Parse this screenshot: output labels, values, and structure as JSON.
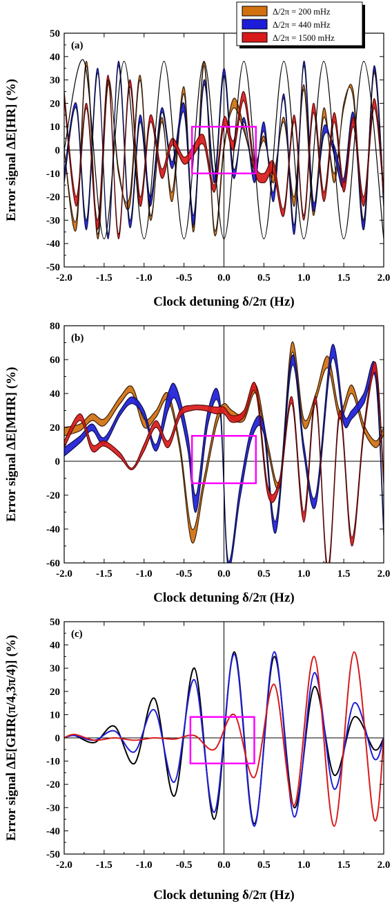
{
  "legend": [
    {
      "label": "Δ/2π = 200 mHz",
      "color": "#d0700f"
    },
    {
      "label": "Δ/2π = 440 mHz",
      "color": "#1d1dd8"
    },
    {
      "label": "Δ/2π = 1500 mHz",
      "color": "#d81a1a"
    }
  ],
  "colors": {
    "black": "#000000",
    "frame": "#000000",
    "highlight_box": "#ff00ff",
    "brown_dark": "#3a1f08",
    "navy_dark": "#0b0f4a",
    "red_dark": "#5a0a0a"
  },
  "chart_data": [
    {
      "panel": "(a)",
      "type": "line",
      "style": "bands",
      "xlabel": "Clock detuning δ/2π  (Hz)",
      "ylabel": "Error signal ΔE[HR] (%)",
      "xlim": [
        -2.0,
        2.0
      ],
      "ylim": [
        -50,
        50
      ],
      "xticks": [
        "-2.0",
        "-1.5",
        "-1.0",
        "-0.5",
        "0.0",
        "0.5",
        "1.0",
        "1.5",
        "2.0"
      ],
      "yticks": [
        "-50",
        "-40",
        "-30",
        "-20",
        "-10",
        "0",
        "10",
        "20",
        "30",
        "40",
        "50"
      ],
      "highlight_box": {
        "x": [
          -0.4,
          0.4
        ],
        "y": [
          -10,
          10
        ]
      },
      "series": [
        {
          "color": "#d0700f",
          "outline": "#3a1f08",
          "x": [
            -2.0,
            -1.85,
            -1.72,
            -1.58,
            -1.45,
            -1.32,
            -1.18,
            -1.05,
            -0.92,
            -0.78,
            -0.65,
            -0.5,
            -0.38,
            -0.25,
            -0.12,
            0.0,
            0.12,
            0.25,
            0.38,
            0.5,
            0.62,
            0.75,
            0.88,
            1.0,
            1.12,
            1.25,
            1.38,
            1.5,
            1.62,
            1.75,
            1.88,
            2.0
          ],
          "y": [
            0,
            -30,
            38,
            -36,
            30,
            -10,
            -20,
            32,
            -28,
            12,
            -18,
            27,
            -33,
            38,
            -34,
            2,
            18,
            8,
            -6,
            4,
            -10,
            12,
            -20,
            28,
            -24,
            14,
            -10,
            18,
            25,
            -30,
            35,
            -20
          ],
          "y_other": [
            0,
            -34,
            36,
            -38,
            28,
            -8,
            -24,
            30,
            -30,
            14,
            -22,
            24,
            -35,
            36,
            -36,
            0,
            22,
            10,
            -8,
            6,
            -14,
            14,
            -24,
            26,
            -28,
            18,
            -14,
            20,
            22,
            -34,
            33,
            -24
          ]
        },
        {
          "color": "#1d1dd8",
          "outline": "#0b0f4a",
          "x": [
            -2.0,
            -1.85,
            -1.72,
            -1.58,
            -1.45,
            -1.32,
            -1.18,
            -1.05,
            -0.92,
            -0.78,
            -0.65,
            -0.5,
            -0.38,
            -0.25,
            -0.12,
            0.0,
            0.12,
            0.25,
            0.38,
            0.5,
            0.62,
            0.75,
            0.88,
            1.0,
            1.12,
            1.25,
            1.38,
            1.5,
            1.62,
            1.75,
            1.88,
            2.0
          ],
          "y": [
            -10,
            20,
            -30,
            35,
            -38,
            38,
            -30,
            15,
            -20,
            18,
            -5,
            20,
            -28,
            30,
            -10,
            35,
            -8,
            12,
            -10,
            8,
            -18,
            22,
            -36,
            38,
            -22,
            6,
            2,
            -12,
            16,
            -34,
            36,
            -20
          ],
          "y_other": [
            -14,
            18,
            -34,
            33,
            -36,
            36,
            -33,
            12,
            -24,
            16,
            -8,
            16,
            -32,
            28,
            -14,
            32,
            -12,
            14,
            -14,
            12,
            -22,
            24,
            -32,
            36,
            -26,
            10,
            -2,
            -16,
            12,
            -30,
            34,
            -24
          ]
        },
        {
          "color": "#d81a1a",
          "outline": "#5a0a0a",
          "x": [
            -2.0,
            -1.85,
            -1.72,
            -1.58,
            -1.45,
            -1.32,
            -1.18,
            -1.05,
            -0.92,
            -0.78,
            -0.65,
            -0.5,
            -0.38,
            -0.25,
            -0.12,
            0.0,
            0.12,
            0.25,
            0.38,
            0.5,
            0.62,
            0.75,
            0.88,
            1.0,
            1.12,
            1.25,
            1.38,
            1.5,
            1.62,
            1.75,
            1.88,
            2.0
          ],
          "y": [
            25,
            -20,
            20,
            -30,
            32,
            -36,
            30,
            -20,
            15,
            -8,
            5,
            -3,
            2,
            6,
            -15,
            14,
            4,
            25,
            -5,
            -10,
            -5,
            -25,
            15,
            -28,
            20,
            -18,
            16,
            -14,
            14,
            -20,
            22,
            -16
          ],
          "y_other": [
            22,
            -24,
            18,
            -34,
            30,
            -38,
            27,
            -24,
            12,
            -12,
            2,
            -6,
            -2,
            2,
            -18,
            10,
            0,
            21,
            -9,
            -14,
            -10,
            -28,
            12,
            -30,
            16,
            -22,
            12,
            -18,
            10,
            -24,
            18,
            -20
          ]
        },
        {
          "color": "#000000",
          "outline": "#000000",
          "x": [
            -2.0,
            -1.75,
            -1.5,
            -1.25,
            -1.0,
            -0.75,
            -0.5,
            -0.25,
            0.0,
            0.25,
            0.5,
            0.75,
            1.0,
            1.25,
            1.5,
            1.75,
            2.0
          ],
          "y": [
            0,
            38,
            -38,
            38,
            -38,
            38,
            -38,
            38,
            -38,
            38,
            -38,
            38,
            -38,
            38,
            -38,
            38,
            -38
          ],
          "y_other": null
        }
      ]
    },
    {
      "panel": "(b)",
      "type": "line",
      "style": "bands",
      "xlabel": "Clock detuning δ/2π  (Hz)",
      "ylabel": "Error signal ΔE[MHR] (%)",
      "xlim": [
        -2.0,
        2.0
      ],
      "ylim": [
        -60,
        80
      ],
      "xticks": [
        "-2.0",
        "-1.5",
        "-1.0",
        "-0.5",
        "0.0",
        "0.5",
        "1.0",
        "1.5",
        "2.0"
      ],
      "yticks": [
        "-60",
        "-40",
        "-20",
        "0",
        "20",
        "40",
        "60",
        "80"
      ],
      "highlight_box": {
        "x": [
          -0.4,
          0.4
        ],
        "y": [
          -13,
          15
        ]
      },
      "series": [
        {
          "color": "#d0700f",
          "outline": "#3a1f08",
          "x": [
            -2.0,
            -1.8,
            -1.65,
            -1.5,
            -1.3,
            -1.15,
            -1.0,
            -0.85,
            -0.7,
            -0.55,
            -0.4,
            -0.25,
            -0.1,
            0.0,
            0.1,
            0.25,
            0.4,
            0.55,
            0.7,
            0.85,
            1.0,
            1.15,
            1.3,
            1.45,
            1.6,
            1.75,
            1.9,
            2.0
          ],
          "y": [
            20,
            22,
            28,
            25,
            38,
            44,
            25,
            30,
            40,
            10,
            -40,
            -10,
            25,
            34,
            30,
            28,
            45,
            10,
            -10,
            70,
            25,
            40,
            62,
            30,
            45,
            22,
            12,
            20
          ],
          "y_other": [
            15,
            18,
            24,
            21,
            34,
            40,
            20,
            26,
            36,
            6,
            -48,
            -15,
            20,
            30,
            25,
            24,
            40,
            6,
            -14,
            64,
            20,
            36,
            55,
            25,
            40,
            18,
            8,
            16
          ]
        },
        {
          "color": "#1d1dd8",
          "outline": "#0b0f4a",
          "x": [
            -2.0,
            -1.8,
            -1.65,
            -1.5,
            -1.3,
            -1.15,
            -1.0,
            -0.85,
            -0.7,
            -0.6,
            -0.45,
            -0.35,
            -0.2,
            -0.05,
            0.05,
            0.2,
            0.35,
            0.5,
            0.65,
            0.85,
            1.0,
            1.15,
            1.35,
            1.5,
            1.6,
            1.75,
            1.9,
            2.0
          ],
          "y": [
            8,
            15,
            22,
            14,
            30,
            38,
            30,
            10,
            40,
            44,
            15,
            -20,
            30,
            36,
            -58,
            -15,
            20,
            22,
            -35,
            62,
            10,
            -20,
            68,
            28,
            30,
            40,
            55,
            -40
          ],
          "y_other": [
            3,
            11,
            18,
            10,
            27,
            34,
            26,
            6,
            30,
            36,
            6,
            -30,
            22,
            30,
            -62,
            -22,
            14,
            16,
            -42,
            56,
            4,
            -26,
            60,
            22,
            25,
            34,
            48,
            -44
          ]
        },
        {
          "color": "#d81a1a",
          "outline": "#5a0a0a",
          "x": [
            -2.0,
            -1.8,
            -1.65,
            -1.5,
            -1.3,
            -1.15,
            -1.0,
            -0.85,
            -0.7,
            -0.55,
            -0.4,
            -0.25,
            -0.1,
            0.0,
            0.1,
            0.25,
            0.4,
            0.55,
            0.7,
            0.85,
            1.0,
            1.15,
            1.3,
            1.45,
            1.6,
            1.75,
            1.9,
            2.0
          ],
          "y": [
            12,
            28,
            10,
            12,
            5,
            -4,
            10,
            24,
            12,
            30,
            33,
            33,
            32,
            32,
            27,
            30,
            45,
            -15,
            -10,
            38,
            -30,
            38,
            -62,
            30,
            -45,
            20,
            58,
            -10
          ],
          "y_other": [
            8,
            24,
            6,
            9,
            2,
            -5,
            6,
            20,
            8,
            26,
            30,
            30,
            28,
            28,
            23,
            26,
            40,
            -20,
            -14,
            34,
            -36,
            34,
            -66,
            26,
            -50,
            16,
            52,
            -14
          ]
        }
      ]
    },
    {
      "panel": "(c)",
      "type": "line",
      "style": "lines",
      "xlabel": "Clock detuning δ/2π  (Hz)",
      "ylabel": "Error signal ΔE[GHR(π/4,3π/4)] (%)",
      "xlim": [
        -2.0,
        2.0
      ],
      "ylim": [
        -50,
        50
      ],
      "xticks": [
        "-2.0",
        "-1.5",
        "-1.0",
        "-0.5",
        "0.0",
        "0.5",
        "1.0",
        "1.5",
        "2.0"
      ],
      "yticks": [
        "-50",
        "-40",
        "-30",
        "-20",
        "-10",
        "0",
        "10",
        "20",
        "30",
        "40",
        "50"
      ],
      "highlight_box": {
        "x": [
          -0.42,
          0.38
        ],
        "y": [
          -11,
          9
        ]
      },
      "series": [
        {
          "color": "#000000",
          "x": [
            -2.0,
            -1.87,
            -1.62,
            -1.37,
            -1.12,
            -0.87,
            -0.62,
            -0.37,
            -0.12,
            0.13,
            0.38,
            0.63,
            0.88,
            1.13,
            1.38,
            1.63,
            1.88,
            2.0
          ],
          "y": [
            0,
            1,
            -2,
            5,
            -11,
            17,
            -25,
            30,
            -35,
            37,
            -37,
            35,
            -30,
            22,
            -16,
            9,
            -5,
            0
          ]
        },
        {
          "color": "#1d1dd8",
          "x": [
            -2.0,
            -1.87,
            -1.62,
            -1.37,
            -1.12,
            -0.87,
            -0.62,
            -0.37,
            -0.12,
            0.13,
            0.38,
            0.63,
            0.88,
            1.13,
            1.38,
            1.63,
            1.88,
            2.0
          ],
          "y": [
            0,
            1,
            -1,
            3,
            -6,
            12,
            -19,
            25,
            -32,
            36,
            -38,
            37,
            -34,
            28,
            -22,
            15,
            -9,
            0
          ]
        },
        {
          "color": "#d81a1a",
          "x": [
            -2.0,
            -1.87,
            -1.62,
            -1.37,
            -1.12,
            -0.87,
            -0.62,
            -0.37,
            -0.12,
            0.13,
            0.38,
            0.63,
            0.88,
            1.13,
            1.38,
            1.63,
            1.88,
            2.0
          ],
          "y": [
            0,
            1.5,
            -1,
            0,
            -1,
            0,
            -0.5,
            1,
            -5,
            10,
            -17,
            23,
            -29,
            35,
            -38,
            37,
            -35,
            0
          ]
        }
      ]
    }
  ]
}
